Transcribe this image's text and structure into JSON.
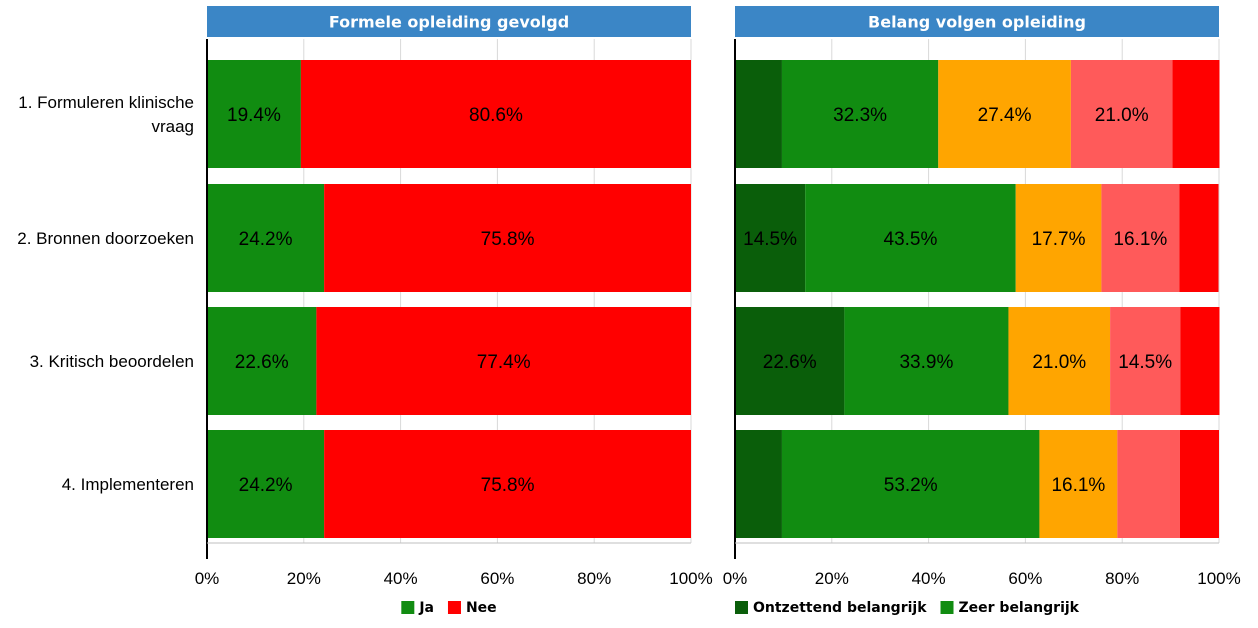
{
  "chart_data": [
    {
      "type": "bar",
      "orientation": "horizontal",
      "stacked": true,
      "title": "Formele opleiding gevolgd",
      "categories": [
        "1. Formuleren klinische vraag",
        "2. Bronnen doorzoeken",
        "3. Kritisch beoordelen",
        "4. Implementeren"
      ],
      "category_lines": [
        [
          "1. Formuleren klinische",
          "vraag"
        ],
        [
          "2. Bronnen doorzoeken"
        ],
        [
          "3. Kritisch beoordelen"
        ],
        [
          "4. Implementeren"
        ]
      ],
      "series": [
        {
          "name": "Ja",
          "color": "#118c11",
          "values": [
            19.4,
            24.2,
            22.6,
            24.2
          ],
          "labels": [
            "19.4%",
            "24.2%",
            "22.6%",
            "24.2%"
          ]
        },
        {
          "name": "Nee",
          "color": "#ff0000",
          "values": [
            80.6,
            75.8,
            77.4,
            75.8
          ],
          "labels": [
            "80.6%",
            "75.8%",
            "77.4%",
            "75.8%"
          ]
        }
      ],
      "xlim": [
        0,
        100
      ],
      "x_ticks": [
        "0%",
        "20%",
        "40%",
        "60%",
        "80%",
        "100%"
      ],
      "grid": true,
      "legend": "bottom",
      "title_bg": "#3b86c6"
    },
    {
      "type": "bar",
      "orientation": "horizontal",
      "stacked": true,
      "title": "Belang volgen opleiding",
      "categories": [
        "1. Formuleren klinische vraag",
        "2. Bronnen doorzoeken",
        "3. Kritisch beoordelen",
        "4. Implementeren"
      ],
      "series": [
        {
          "name": "Ontzettend belangrijk",
          "color": "#0a5e0a",
          "values": [
            9.7,
            14.5,
            22.6,
            9.7
          ],
          "labels": [
            "",
            "14.5%",
            "22.6%",
            ""
          ]
        },
        {
          "name": "Zeer belangrijk",
          "color": "#118c11",
          "values": [
            32.3,
            43.5,
            33.9,
            53.2
          ],
          "labels": [
            "32.3%",
            "43.5%",
            "33.9%",
            "53.2%"
          ]
        },
        {
          "name": "",
          "color": "#ffa500",
          "values": [
            27.4,
            17.7,
            21.0,
            16.1
          ],
          "labels": [
            "27.4%",
            "17.7%",
            "21.0%",
            "16.1%"
          ]
        },
        {
          "name": "",
          "color": "#ff5a5a",
          "values": [
            21.0,
            16.1,
            14.5,
            12.9
          ],
          "labels": [
            "21.0%",
            "16.1%",
            "14.5%",
            ""
          ]
        },
        {
          "name": "",
          "color": "#ff0000",
          "values": [
            9.7,
            8.1,
            8.1,
            8.1
          ],
          "labels": [
            "",
            "",
            "",
            ""
          ]
        }
      ],
      "xlim": [
        0,
        100
      ],
      "x_ticks": [
        "0%",
        "20%",
        "40%",
        "60%",
        "80%",
        "100%"
      ],
      "grid": true,
      "legend": "bottom",
      "title_bg": "#3b86c6"
    }
  ]
}
